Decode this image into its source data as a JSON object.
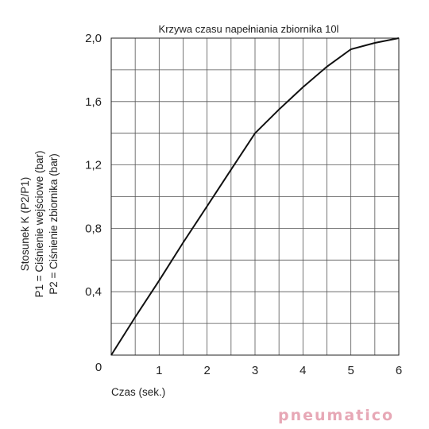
{
  "chart_data": {
    "type": "line",
    "title": "Krzywa czasu napełniania zbiornika 10l",
    "xlabel": "Czas (sek.)",
    "ylabel_lines": [
      "Stosunek K (P2/P1)",
      "P1 = Ciśnienie wejściowe (bar)",
      "P2 = Ciśnienie zbiornika (bar)"
    ],
    "xlim": [
      0,
      6
    ],
    "ylim": [
      0,
      2
    ],
    "x_ticks": [
      1,
      2,
      3,
      4,
      5,
      6
    ],
    "y_ticks": [
      0.4,
      0.8,
      1.2,
      1.6,
      2.0
    ],
    "x_tick_labels": [
      "1",
      "2",
      "3",
      "4",
      "5",
      "6"
    ],
    "y_tick_labels": [
      "0,4",
      "0,8",
      "1,2",
      "1,6",
      "2,0"
    ],
    "origin_label": "0",
    "grid": true,
    "x_grid_step": 0.5,
    "y_grid_step": 0.2,
    "series": [
      {
        "x": [
          0,
          0.5,
          1,
          1.5,
          2,
          2.5,
          3,
          3.5,
          4,
          4.5,
          5,
          5.5,
          6
        ],
        "y": [
          0,
          0.24,
          0.47,
          0.71,
          0.94,
          1.17,
          1.4,
          1.55,
          1.69,
          1.82,
          1.93,
          1.97,
          2.0
        ]
      }
    ]
  },
  "brand": {
    "text": "pneumatico"
  }
}
